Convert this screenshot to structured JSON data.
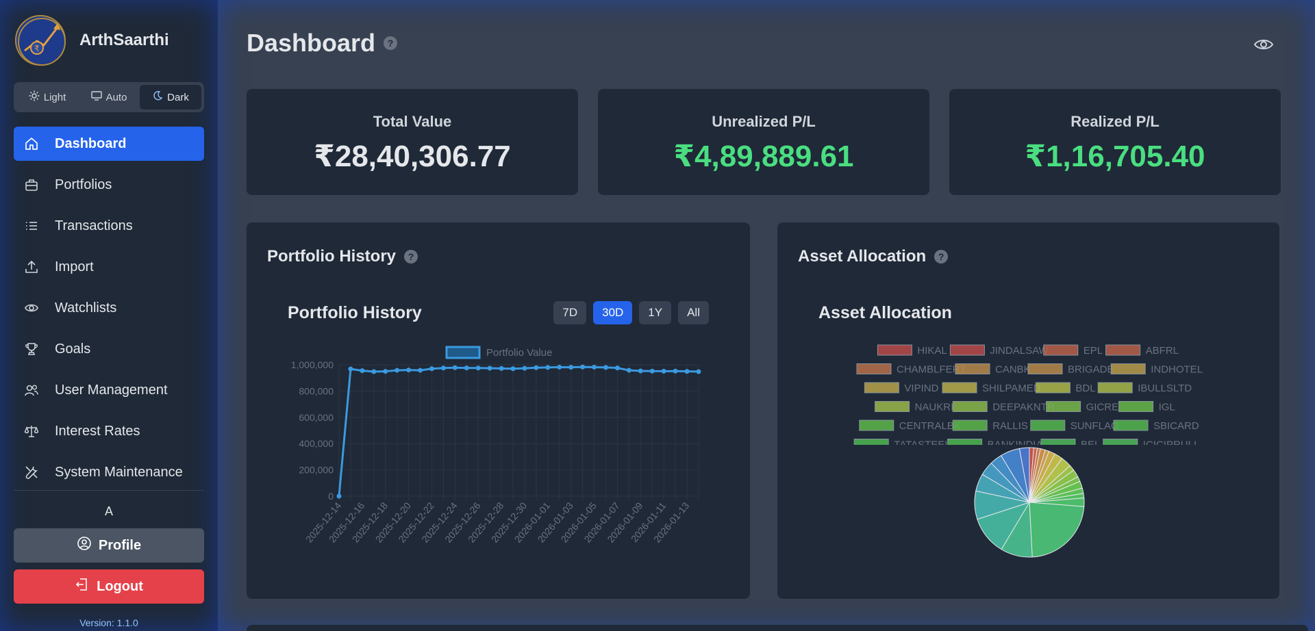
{
  "app": {
    "name": "ArthSaarthi",
    "version": "Version: 1.1.0"
  },
  "theme": {
    "options": [
      "Light",
      "Auto",
      "Dark"
    ],
    "selected": "Dark"
  },
  "sidebar": {
    "items": [
      {
        "label": "Dashboard",
        "icon": "home-icon",
        "active": true
      },
      {
        "label": "Portfolios",
        "icon": "briefcase-icon"
      },
      {
        "label": "Transactions",
        "icon": "list-icon"
      },
      {
        "label": "Import",
        "icon": "upload-icon"
      },
      {
        "label": "Watchlists",
        "icon": "eye-icon"
      },
      {
        "label": "Goals",
        "icon": "trophy-icon"
      },
      {
        "label": "User Management",
        "icon": "users-icon"
      },
      {
        "label": "Interest Rates",
        "icon": "scale-icon"
      },
      {
        "label": "System Maintenance",
        "icon": "tools-icon"
      }
    ],
    "user_initial": "A",
    "profile_label": "Profile",
    "logout_label": "Logout"
  },
  "header": {
    "title": "Dashboard",
    "help": "?"
  },
  "stats": [
    {
      "label": "Total Value",
      "value": "₹28,40,306.77",
      "tone": "neutral"
    },
    {
      "label": "Unrealized P/L",
      "value": "₹4,89,889.61",
      "tone": "positive"
    },
    {
      "label": "Realized P/L",
      "value": "₹1,16,705.40",
      "tone": "positive"
    }
  ],
  "history_panel": {
    "title": "Portfolio History",
    "chart_title": "Portfolio History",
    "ranges": [
      "7D",
      "30D",
      "1Y",
      "All"
    ],
    "active_range": "30D"
  },
  "allocation_panel": {
    "title": "Asset Allocation",
    "chart_title": "Asset Allocation"
  },
  "colors": {
    "accent": "#2563eb",
    "positive": "#4ade80",
    "danger": "#e5414a",
    "line": "#3b9ae1"
  },
  "chart_data": [
    {
      "type": "line",
      "legend": [
        "Portfolio Value"
      ],
      "x": [
        "2025-12-14",
        "2025-12-15",
        "2025-12-16",
        "2025-12-17",
        "2025-12-18",
        "2025-12-19",
        "2025-12-20",
        "2025-12-21",
        "2025-12-22",
        "2025-12-23",
        "2025-12-24",
        "2025-12-25",
        "2025-12-26",
        "2025-12-27",
        "2025-12-28",
        "2025-12-29",
        "2025-12-30",
        "2025-12-31",
        "2026-01-01",
        "2026-01-02",
        "2026-01-03",
        "2026-01-04",
        "2026-01-05",
        "2026-01-06",
        "2026-01-07",
        "2026-01-08",
        "2026-01-09",
        "2026-01-10",
        "2026-01-11",
        "2026-01-12",
        "2026-01-13",
        "2026-01-14"
      ],
      "xticks": [
        "2025-12-14",
        "2025-12-16",
        "2025-12-18",
        "2025-12-20",
        "2025-12-22",
        "2025-12-24",
        "2025-12-26",
        "2025-12-28",
        "2025-12-30",
        "2026-01-01",
        "2026-01-03",
        "2026-01-05",
        "2026-01-07",
        "2026-01-09",
        "2026-01-11",
        "2026-01-13"
      ],
      "series": [
        {
          "name": "Portfolio Value",
          "values": [
            0,
            968000,
            955000,
            948000,
            950000,
            958000,
            960000,
            958000,
            970000,
            975000,
            978000,
            976000,
            975000,
            974000,
            972000,
            970000,
            973000,
            978000,
            980000,
            982000,
            981000,
            983000,
            982000,
            980000,
            976000,
            958000,
            953000,
            952000,
            951000,
            952000,
            950000,
            948000
          ]
        }
      ],
      "yticks": [
        "1,000,000",
        "800,000",
        "600,000",
        "400,000",
        "200,000",
        "0"
      ],
      "ylim": [
        0,
        1000000
      ],
      "grid": true,
      "legend_position": "top"
    },
    {
      "type": "pie",
      "legend": [
        "HIKAL",
        "JINDALSAW",
        "EPL",
        "ABFRL",
        "CHAMBLFERT",
        "CANBK",
        "BRIGADE",
        "INDHOTEL",
        "VIPIND",
        "SHILPAMED",
        "BDL",
        "IBULLSLTD",
        "NAUKRI",
        "DEEPAKNTR",
        "GICRE",
        "IGL",
        "CENTRALBK",
        "RALLIS",
        "SUNFLAG",
        "SBICARD",
        "TATASTEEL",
        "BANKINDIA",
        "BEL",
        "ICICIPRULI"
      ],
      "legend_colors": [
        "#b94a4a",
        "#b94a4a",
        "#b8614a",
        "#b8614a",
        "#b8704a",
        "#b88a4a",
        "#b88a4a",
        "#b89a4a",
        "#b8a34a",
        "#b8ad4a",
        "#b0b84a",
        "#a8b84a",
        "#9ab84a",
        "#8ab84a",
        "#7ab84a",
        "#6ab84a",
        "#5eb84a",
        "#5eb84a",
        "#55b84e",
        "#55b84e",
        "#4eb852",
        "#4eb852",
        "#4eb85a",
        "#4eb85a"
      ],
      "slices": [
        {
          "color": "#c0504d",
          "value": 1.2
        },
        {
          "color": "#c8664a",
          "value": 1.0
        },
        {
          "color": "#c87a4a",
          "value": 0.9
        },
        {
          "color": "#c88c4a",
          "value": 1.4
        },
        {
          "color": "#c89a4a",
          "value": 1.1
        },
        {
          "color": "#c8aa4a",
          "value": 1.8
        },
        {
          "color": "#c0b84a",
          "value": 2.4
        },
        {
          "color": "#b0c04a",
          "value": 3.0
        },
        {
          "color": "#9ac04a",
          "value": 1.6
        },
        {
          "color": "#88c04a",
          "value": 2.2
        },
        {
          "color": "#76c04a",
          "value": 1.4
        },
        {
          "color": "#66c04e",
          "value": 2.0
        },
        {
          "color": "#5ac056",
          "value": 1.5
        },
        {
          "color": "#52be60",
          "value": 1.3
        },
        {
          "color": "#4cbc6a",
          "value": 2.4
        },
        {
          "color": "#48b872",
          "value": 22.0
        },
        {
          "color": "#46b488",
          "value": 9.0
        },
        {
          "color": "#44b09a",
          "value": 11.0
        },
        {
          "color": "#44aaa8",
          "value": 8.0
        },
        {
          "color": "#44a2b4",
          "value": 5.0
        },
        {
          "color": "#4498be",
          "value": 4.0
        },
        {
          "color": "#448cc4",
          "value": 3.5
        },
        {
          "color": "#4480c8",
          "value": 5.5
        },
        {
          "color": "#4a74c8",
          "value": 2.8
        }
      ]
    }
  ]
}
